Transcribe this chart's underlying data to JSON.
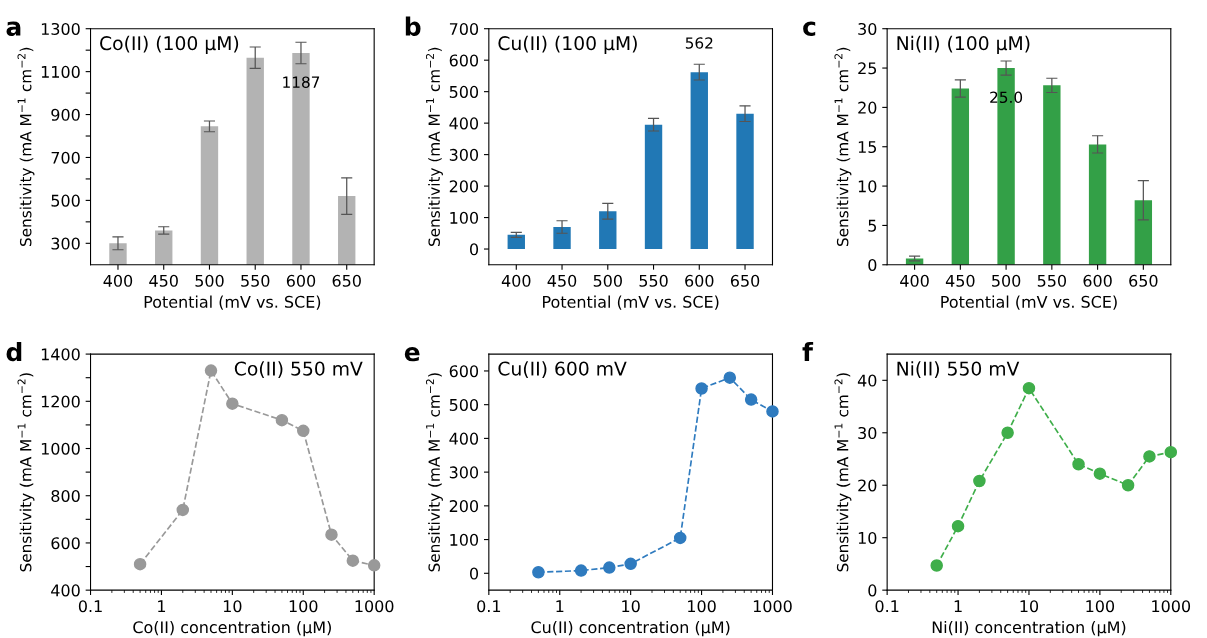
{
  "chart_data": [
    {
      "type": "bar",
      "title": "Co(II) (100 µM)",
      "annotations": [
        "a"
      ],
      "xlabel": "Potential (mV vs. SCE)",
      "ylabel": "Sensitivity (mA M$^{−1}$ cm$^{−2}$)",
      "categories": [
        "400",
        "450",
        "500",
        "550",
        "600",
        "650"
      ],
      "values": [
        300,
        360,
        845,
        1165,
        1187,
        520
      ],
      "errors": [
        30,
        17,
        25,
        50,
        50,
        85
      ],
      "value_labels": [
        null,
        null,
        null,
        null,
        "1187",
        null
      ],
      "color": "#b3b3b3",
      "ylim": [
        200,
        1300
      ],
      "yticks": [
        300,
        {
          "value": 400,
          "label": null
        },
        500,
        {
          "value": 600,
          "label": null
        },
        700,
        {
          "value": 800,
          "label": null
        },
        900,
        {
          "value": 1000,
          "label": null
        },
        1100,
        {
          "value": 1200,
          "label": null
        },
        1300
      ],
      "grid": false,
      "legend": false
    },
    {
      "type": "bar",
      "title": "Cu(II) (100 µM)",
      "annotations": [
        "b"
      ],
      "xlabel": "Potential (mV vs. SCE)",
      "ylabel": "Sensitivity (mA M$^{−1}$ cm$^{−2}$)",
      "categories": [
        "400",
        "450",
        "500",
        "550",
        "600",
        "650"
      ],
      "values": [
        45,
        70,
        120,
        395,
        562,
        430
      ],
      "errors": [
        8,
        20,
        25,
        20,
        25,
        25
      ],
      "value_labels": [
        null,
        null,
        null,
        null,
        "562",
        null
      ],
      "color": "#2178b5",
      "ylim": [
        -50,
        700
      ],
      "yticks": [
        0,
        100,
        200,
        300,
        400,
        500,
        600,
        700
      ],
      "grid": false,
      "legend": false
    },
    {
      "type": "bar",
      "title": "Ni(II) (100 µM)",
      "annotations": [
        "c"
      ],
      "xlabel": "Potential (mV vs. SCE)",
      "ylabel": "Sensitivity (mA M$^{−1}$ cm$^{−2}$)",
      "categories": [
        "400",
        "450",
        "500",
        "550",
        "600",
        "650"
      ],
      "values": [
        0.8,
        22.4,
        25.0,
        22.8,
        15.3,
        8.2
      ],
      "errors": [
        0.3,
        1.1,
        0.9,
        0.9,
        1.1,
        2.5
      ],
      "value_labels": [
        null,
        null,
        "25.0",
        null,
        null,
        null
      ],
      "color": "#33a047",
      "ylim": [
        0,
        30
      ],
      "yticks": [
        0,
        5,
        10,
        15,
        20,
        25,
        30
      ],
      "grid": false,
      "legend": false
    },
    {
      "type": "line",
      "title": "Co(II) 550 mV",
      "annotations": [
        "d"
      ],
      "xlabel": "Co(II) concentration (µM)",
      "ylabel": "Sensitivity (mA M$^{−1}$ cm$^{−2}$)",
      "log": "x",
      "marker": "circle",
      "line_style": "dashed",
      "series": [
        {
          "color": "#999999",
          "x": [
            0.5,
            2,
            5,
            10,
            50,
            100,
            250,
            500,
            1000
          ],
          "values": [
            510,
            740,
            1330,
            1190,
            1120,
            1075,
            635,
            525,
            505
          ]
        }
      ],
      "xlim": [
        0.1,
        1000
      ],
      "xticks": [
        0.1,
        1,
        10,
        100,
        1000
      ],
      "ylim": [
        400,
        1400
      ],
      "yticks": [
        400,
        {
          "value": 500,
          "label": null
        },
        600,
        {
          "value": 700,
          "label": null
        },
        800,
        {
          "value": 900,
          "label": null
        },
        1000,
        {
          "value": 1100,
          "label": null
        },
        1200,
        {
          "value": 1300,
          "label": null
        },
        1400
      ],
      "grid": false,
      "legend": false
    },
    {
      "type": "line",
      "title": "Cu(II) 600 mV",
      "annotations": [
        "e"
      ],
      "xlabel": "Cu(II) concentration (µM)",
      "ylabel": "Sensitivity (mA M$^{−1}$ cm$^{−2}$)",
      "log": "x",
      "marker": "circle",
      "line_style": "dashed",
      "series": [
        {
          "color": "#2f7bbf",
          "x": [
            0.5,
            2,
            5,
            10,
            50,
            100,
            250,
            500,
            1000
          ],
          "values": [
            3,
            8,
            17,
            28,
            105,
            548,
            580,
            515,
            480
          ]
        }
      ],
      "xlim": [
        0.1,
        1000
      ],
      "xticks": [
        0.1,
        1,
        10,
        100,
        1000
      ],
      "ylim": [
        -50,
        650
      ],
      "yticks": [
        0,
        100,
        200,
        300,
        400,
        500,
        600
      ],
      "grid": false,
      "legend": false
    },
    {
      "type": "line",
      "title": "Ni(II) 550 mV",
      "annotations": [
        "f"
      ],
      "xlabel": "Ni(II) concentration (µM)",
      "ylabel": "Sensitivity (mA M$^{−1}$ cm$^{−2}$)",
      "log": "x",
      "marker": "circle",
      "line_style": "dashed",
      "series": [
        {
          "color": "#3fae4a",
          "x": [
            0.5,
            1,
            2,
            5,
            10,
            50,
            100,
            250,
            500,
            1000
          ],
          "values": [
            4.7,
            12.2,
            20.8,
            30,
            38.5,
            24,
            22.2,
            20,
            25.5,
            26.3
          ]
        }
      ],
      "xlim": [
        0.1,
        1000
      ],
      "xticks": [
        0.1,
        1,
        10,
        100,
        1000
      ],
      "ylim": [
        0,
        45
      ],
      "yticks": [
        0,
        10,
        20,
        30,
        40
      ],
      "grid": false,
      "legend": false
    }
  ]
}
